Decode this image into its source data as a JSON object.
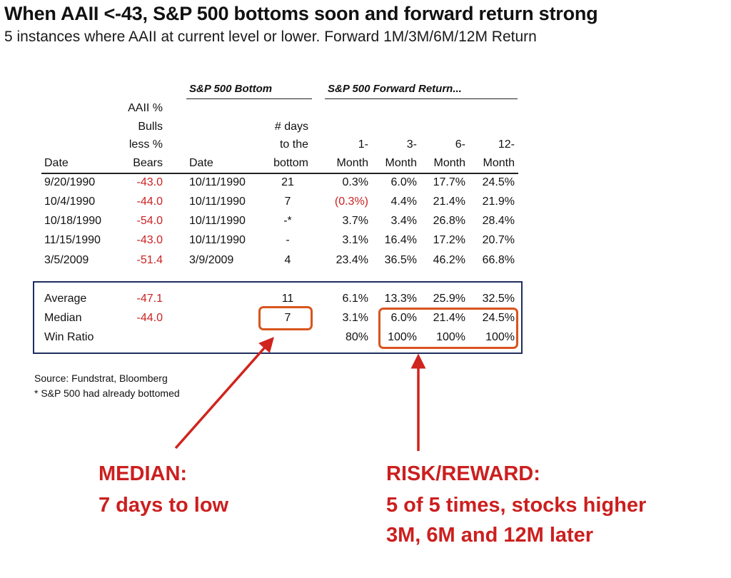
{
  "title": "When AAII <-43, S&P 500 bottoms soon and forward return strong",
  "subtitle": "5 instances where AAII at current level or lower. Forward 1M/3M/6M/12M Return",
  "table": {
    "group_headers": {
      "bottom": "S&P 500 Bottom",
      "forward": "S&P 500 Forward Return..."
    },
    "headers": {
      "date": "Date",
      "aaii": [
        "AAII %",
        "Bulls",
        "less %",
        "Bears"
      ],
      "bottom_date": "Date",
      "days": [
        "# days",
        "to the",
        "bottom"
      ],
      "m1": [
        "1-",
        "Month"
      ],
      "m3": [
        "3-",
        "Month"
      ],
      "m6": [
        "6-",
        "Month"
      ],
      "m12": [
        "12-",
        "Month"
      ]
    },
    "rows": [
      {
        "date": "9/20/1990",
        "aaii": "-43.0",
        "bottom_date": "10/11/1990",
        "days": "21",
        "m1": "0.3%",
        "m3": "6.0%",
        "m6": "17.7%",
        "m12": "24.5%",
        "m1_negative": false
      },
      {
        "date": "10/4/1990",
        "aaii": "-44.0",
        "bottom_date": "10/11/1990",
        "days": "7",
        "m1": "(0.3%)",
        "m3": "4.4%",
        "m6": "21.4%",
        "m12": "21.9%",
        "m1_negative": true
      },
      {
        "date": "10/18/1990",
        "aaii": "-54.0",
        "bottom_date": "10/11/1990",
        "days": "-*",
        "m1": "3.7%",
        "m3": "3.4%",
        "m6": "26.8%",
        "m12": "28.4%",
        "m1_negative": false
      },
      {
        "date": "11/15/1990",
        "aaii": "-43.0",
        "bottom_date": "10/11/1990",
        "days": "-",
        "m1": "3.1%",
        "m3": "16.4%",
        "m6": "17.2%",
        "m12": "20.7%",
        "m1_negative": false
      },
      {
        "date": "3/5/2009",
        "aaii": "-51.4",
        "bottom_date": "3/9/2009",
        "days": "4",
        "m1": "23.4%",
        "m3": "36.5%",
        "m6": "46.2%",
        "m12": "66.8%",
        "m1_negative": false
      }
    ],
    "summary": [
      {
        "label": "Average",
        "aaii": "-47.1",
        "days": "11",
        "m1": "6.1%",
        "m3": "13.3%",
        "m6": "25.9%",
        "m12": "32.5%"
      },
      {
        "label": "Median",
        "aaii": "-44.0",
        "days": "7",
        "m1": "3.1%",
        "m3": "6.0%",
        "m6": "21.4%",
        "m12": "24.5%"
      },
      {
        "label": "Win Ratio",
        "aaii": "",
        "days": "",
        "m1": "80%",
        "m3": "100%",
        "m6": "100%",
        "m12": "100%"
      }
    ]
  },
  "source": "Source: Fundstrat, Bloomberg",
  "footnote": "* S&P 500 had already bottomed",
  "callouts": {
    "median": [
      "MEDIAN:",
      "7 days to low"
    ],
    "risk": [
      "RISK/REWARD:",
      "5 of 5 times, stocks higher",
      "3M, 6M and 12M later"
    ]
  },
  "colors": {
    "negative": "#cc2222",
    "callout": "#cc1f1f",
    "highlight_box": "#d9541e",
    "summary_box": "#1f2f5e"
  }
}
